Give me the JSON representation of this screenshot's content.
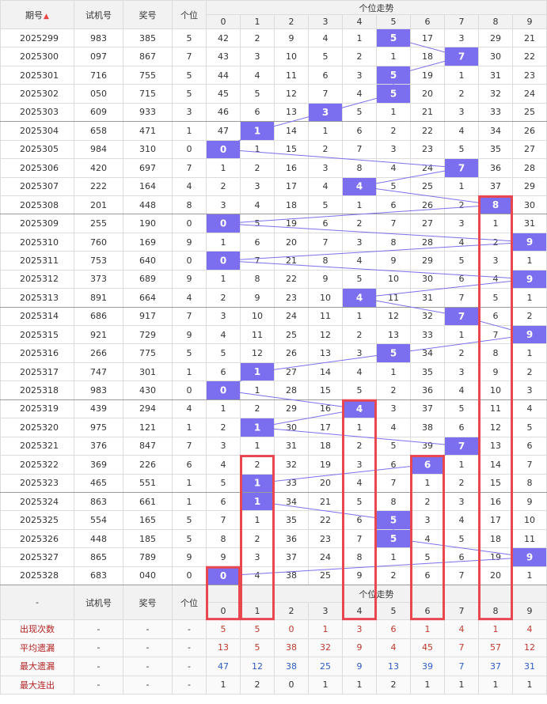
{
  "header": {
    "col_period": "期号",
    "col_trial": "试机号",
    "col_prize": "奖号",
    "col_unit": "个位",
    "trend_title": "个位走势",
    "digits": [
      "0",
      "1",
      "2",
      "3",
      "4",
      "5",
      "6",
      "7",
      "8",
      "9"
    ]
  },
  "colors": {
    "ball": "#7b6ff0",
    "box": "#e8474f",
    "line": "#7b6ff0"
  },
  "chart_data": {
    "type": "table",
    "title": "个位走势",
    "rows": [
      {
        "period": "2025299",
        "trial": "983",
        "prize": "385",
        "unit": 5,
        "cells": [
          42,
          2,
          9,
          4,
          1,
          5,
          17,
          3,
          29,
          21
        ]
      },
      {
        "period": "2025300",
        "trial": "097",
        "prize": "867",
        "unit": 7,
        "cells": [
          43,
          3,
          10,
          5,
          2,
          1,
          18,
          7,
          30,
          22
        ]
      },
      {
        "period": "2025301",
        "trial": "716",
        "prize": "755",
        "unit": 5,
        "cells": [
          44,
          4,
          11,
          6,
          3,
          5,
          19,
          1,
          31,
          23
        ]
      },
      {
        "period": "2025302",
        "trial": "050",
        "prize": "715",
        "unit": 5,
        "cells": [
          45,
          5,
          12,
          7,
          4,
          5,
          20,
          2,
          32,
          24
        ]
      },
      {
        "period": "2025303",
        "trial": "609",
        "prize": "933",
        "unit": 3,
        "cells": [
          46,
          6,
          13,
          3,
          5,
          1,
          21,
          3,
          33,
          25
        ]
      },
      {
        "period": "2025304",
        "trial": "658",
        "prize": "471",
        "unit": 1,
        "cells": [
          47,
          1,
          14,
          1,
          6,
          2,
          22,
          4,
          34,
          26
        ]
      },
      {
        "period": "2025305",
        "trial": "984",
        "prize": "310",
        "unit": 0,
        "cells": [
          0,
          1,
          15,
          2,
          7,
          3,
          23,
          5,
          35,
          27
        ]
      },
      {
        "period": "2025306",
        "trial": "420",
        "prize": "697",
        "unit": 7,
        "cells": [
          1,
          2,
          16,
          3,
          8,
          4,
          24,
          7,
          36,
          28
        ]
      },
      {
        "period": "2025307",
        "trial": "222",
        "prize": "164",
        "unit": 4,
        "cells": [
          2,
          3,
          17,
          4,
          4,
          5,
          25,
          1,
          37,
          29
        ]
      },
      {
        "period": "2025308",
        "trial": "201",
        "prize": "448",
        "unit": 8,
        "cells": [
          3,
          4,
          18,
          5,
          1,
          6,
          26,
          2,
          8,
          30
        ]
      },
      {
        "period": "2025309",
        "trial": "255",
        "prize": "190",
        "unit": 0,
        "cells": [
          0,
          5,
          19,
          6,
          2,
          7,
          27,
          3,
          1,
          31
        ]
      },
      {
        "period": "2025310",
        "trial": "760",
        "prize": "169",
        "unit": 9,
        "cells": [
          1,
          6,
          20,
          7,
          3,
          8,
          28,
          4,
          2,
          9
        ]
      },
      {
        "period": "2025311",
        "trial": "753",
        "prize": "640",
        "unit": 0,
        "cells": [
          0,
          7,
          21,
          8,
          4,
          9,
          29,
          5,
          3,
          1
        ]
      },
      {
        "period": "2025312",
        "trial": "373",
        "prize": "689",
        "unit": 9,
        "cells": [
          1,
          8,
          22,
          9,
          5,
          10,
          30,
          6,
          4,
          9
        ]
      },
      {
        "period": "2025313",
        "trial": "891",
        "prize": "664",
        "unit": 4,
        "cells": [
          2,
          9,
          23,
          10,
          4,
          11,
          31,
          7,
          5,
          1
        ]
      },
      {
        "period": "2025314",
        "trial": "686",
        "prize": "917",
        "unit": 7,
        "cells": [
          3,
          10,
          24,
          11,
          1,
          12,
          32,
          7,
          6,
          2
        ]
      },
      {
        "period": "2025315",
        "trial": "921",
        "prize": "729",
        "unit": 9,
        "cells": [
          4,
          11,
          25,
          12,
          2,
          13,
          33,
          1,
          7,
          9
        ]
      },
      {
        "period": "2025316",
        "trial": "266",
        "prize": "775",
        "unit": 5,
        "cells": [
          5,
          12,
          26,
          13,
          3,
          5,
          34,
          2,
          8,
          1
        ]
      },
      {
        "period": "2025317",
        "trial": "747",
        "prize": "301",
        "unit": 1,
        "cells": [
          6,
          1,
          27,
          14,
          4,
          1,
          35,
          3,
          9,
          2
        ]
      },
      {
        "period": "2025318",
        "trial": "983",
        "prize": "430",
        "unit": 0,
        "cells": [
          0,
          1,
          28,
          15,
          5,
          2,
          36,
          4,
          10,
          3
        ]
      },
      {
        "period": "2025319",
        "trial": "439",
        "prize": "294",
        "unit": 4,
        "cells": [
          1,
          2,
          29,
          16,
          4,
          3,
          37,
          5,
          11,
          4
        ]
      },
      {
        "period": "2025320",
        "trial": "975",
        "prize": "121",
        "unit": 1,
        "cells": [
          2,
          1,
          30,
          17,
          1,
          4,
          38,
          6,
          12,
          5
        ]
      },
      {
        "period": "2025321",
        "trial": "376",
        "prize": "847",
        "unit": 7,
        "cells": [
          3,
          1,
          31,
          18,
          2,
          5,
          39,
          7,
          13,
          6
        ]
      },
      {
        "period": "2025322",
        "trial": "369",
        "prize": "226",
        "unit": 6,
        "cells": [
          4,
          2,
          32,
          19,
          3,
          6,
          6,
          1,
          14,
          7
        ]
      },
      {
        "period": "2025323",
        "trial": "465",
        "prize": "551",
        "unit": 1,
        "cells": [
          5,
          1,
          33,
          20,
          4,
          7,
          1,
          2,
          15,
          8
        ]
      },
      {
        "period": "2025324",
        "trial": "863",
        "prize": "661",
        "unit": 1,
        "cells": [
          6,
          1,
          34,
          21,
          5,
          8,
          2,
          3,
          16,
          9
        ]
      },
      {
        "period": "2025325",
        "trial": "554",
        "prize": "165",
        "unit": 5,
        "cells": [
          7,
          1,
          35,
          22,
          6,
          5,
          3,
          4,
          17,
          10
        ]
      },
      {
        "period": "2025326",
        "trial": "448",
        "prize": "185",
        "unit": 5,
        "cells": [
          8,
          2,
          36,
          23,
          7,
          5,
          4,
          5,
          18,
          11
        ]
      },
      {
        "period": "2025327",
        "trial": "865",
        "prize": "789",
        "unit": 9,
        "cells": [
          9,
          3,
          37,
          24,
          8,
          1,
          5,
          6,
          19,
          9
        ]
      },
      {
        "period": "2025328",
        "trial": "683",
        "prize": "040",
        "unit": 0,
        "cells": [
          0,
          4,
          38,
          25,
          9,
          2,
          6,
          7,
          20,
          1
        ]
      }
    ],
    "stats": [
      {
        "label": "出现次数",
        "color": "red",
        "dash": "-",
        "values": [
          5,
          5,
          0,
          1,
          3,
          6,
          1,
          4,
          1,
          4
        ]
      },
      {
        "label": "平均遗漏",
        "color": "red",
        "dash": "-",
        "values": [
          13,
          5,
          38,
          32,
          9,
          4,
          45,
          7,
          57,
          12
        ]
      },
      {
        "label": "最大遗漏",
        "color": "blue",
        "dash": "-",
        "values": [
          47,
          12,
          38,
          25,
          9,
          13,
          39,
          7,
          37,
          31
        ]
      },
      {
        "label": "最大连出",
        "color": "red",
        "dash": "-",
        "values": [
          1,
          2,
          0,
          1,
          1,
          2,
          1,
          1,
          1,
          1
        ]
      }
    ],
    "footer_dash": "-"
  }
}
